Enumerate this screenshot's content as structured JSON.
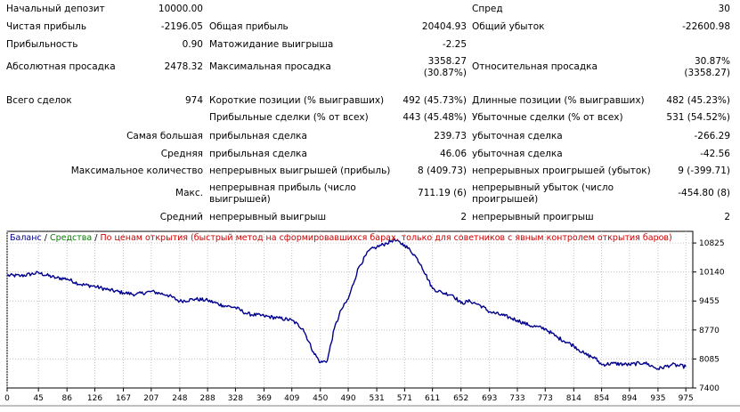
{
  "stats": {
    "initial_deposit": {
      "label": "Начальный депозит",
      "value": "10000.00"
    },
    "spread": {
      "label": "Спред",
      "value": "30"
    },
    "net_profit": {
      "label": "Чистая прибыль",
      "value": "-2196.05"
    },
    "gross_profit": {
      "label": "Общая прибыль",
      "value": "20404.93"
    },
    "gross_loss": {
      "label": "Общий убыток",
      "value": "-22600.98"
    },
    "profit_factor": {
      "label": "Прибыльность",
      "value": "0.90"
    },
    "expected_payoff": {
      "label": "Матожидание выигрыша",
      "value": "-2.25"
    },
    "abs_drawdown": {
      "label": "Абсолютная просадка",
      "value": "2478.32"
    },
    "max_drawdown": {
      "label": "Максимальная просадка",
      "value_line1": "3358.27",
      "value_line2": "(30.87%)"
    },
    "rel_drawdown": {
      "label": "Относительная просадка",
      "value_line1": "30.87%",
      "value_line2": "(3358.27)"
    },
    "total_trades": {
      "label": "Всего сделок",
      "value": "974"
    },
    "short_positions": {
      "label": "Короткие позиции (% выигравших)",
      "value": "492 (45.73%)"
    },
    "long_positions": {
      "label": "Длинные позиции (% выигравших)",
      "value": "482 (45.23%)"
    },
    "profit_trades": {
      "label": "Прибыльные сделки (% от всех)",
      "value": "443 (45.48%)"
    },
    "loss_trades": {
      "label": "Убыточные сделки (% от всех)",
      "value": "531 (54.52%)"
    },
    "largest": {
      "prefix": "Самая большая",
      "profit_label": "прибыльная сделка",
      "profit_value": "239.73",
      "loss_label": "убыточная сделка",
      "loss_value": "-266.29"
    },
    "average": {
      "prefix": "Средняя",
      "profit_label": "прибыльная сделка",
      "profit_value": "46.06",
      "loss_label": "убыточная сделка",
      "loss_value": "-42.56"
    },
    "max_count": {
      "prefix": "Максимальное количество",
      "wins_label": "непрерывных выигрышей (прибыль)",
      "wins_value": "8 (409.73)",
      "losses_label": "непрерывных проигрышей (убыток)",
      "losses_value": "9 (-399.71)"
    },
    "max_amount": {
      "prefix": "Макс.",
      "wins_label": "непрерывная прибыль (число выигрышей)",
      "wins_value": "711.19 (6)",
      "losses_label": "непрерывный убыток (число проигрышей)",
      "losses_value": "-454.80 (8)"
    },
    "avg_consecutive": {
      "prefix": "Средний",
      "wins_label": "непрерывный выигрыш",
      "wins_value": "2",
      "losses_label": "непрерывный проигрыш",
      "losses_value": "2"
    }
  },
  "chart_legend": {
    "balance": "Баланс",
    "sep1": "/",
    "equity": "Средства",
    "sep2": "/",
    "model": "По ценам открытия (быстрый метод на сформировавшихся барах, только для советников с явным контролем открытия баров)"
  },
  "colors": {
    "balance": "#00008b",
    "equity": "#008000",
    "model": "#cc0000",
    "grid": "#c0c0c0",
    "axis": "#000000"
  },
  "chart_data": {
    "type": "line",
    "series": [
      {
        "name": "Баланс",
        "x": [
          0,
          20,
          45,
          70,
          86,
          105,
          126,
          145,
          167,
          185,
          207,
          230,
          248,
          270,
          288,
          310,
          328,
          345,
          369,
          390,
          409,
          425,
          440,
          450,
          460,
          470,
          480,
          490,
          505,
          520,
          531,
          545,
          555,
          571,
          585,
          595,
          611,
          625,
          640,
          652,
          665,
          680,
          693,
          715,
          733,
          750,
          773,
          790,
          814,
          830,
          845,
          854,
          870,
          894,
          915,
          935,
          955,
          975
        ],
        "y": [
          10060,
          10050,
          10120,
          10000,
          9980,
          9850,
          9800,
          9720,
          9650,
          9610,
          9680,
          9600,
          9450,
          9500,
          9470,
          9350,
          9300,
          9150,
          9100,
          9050,
          9000,
          8800,
          8250,
          8000,
          8050,
          8800,
          9250,
          9500,
          10250,
          10650,
          10730,
          10820,
          10900,
          10780,
          10550,
          10300,
          9750,
          9650,
          9600,
          9400,
          9450,
          9350,
          9200,
          9100,
          9000,
          8880,
          8800,
          8600,
          8400,
          8200,
          8100,
          7950,
          7980,
          7950,
          8000,
          7850,
          7950,
          7900
        ]
      }
    ],
    "xticks": [
      0,
      45,
      86,
      126,
      167,
      207,
      248,
      288,
      328,
      369,
      409,
      450,
      490,
      531,
      571,
      611,
      652,
      693,
      733,
      773,
      814,
      854,
      894,
      935,
      975
    ],
    "yticks": [
      7400,
      8085,
      8770,
      9455,
      10140,
      10825
    ],
    "xlim": [
      0,
      985
    ],
    "ylim": [
      7400,
      11100
    ],
    "grid": true
  }
}
